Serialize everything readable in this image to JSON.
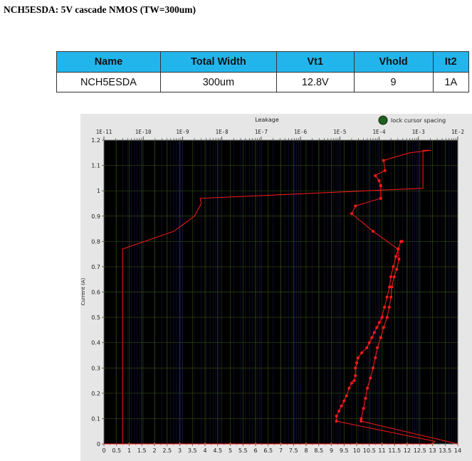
{
  "page": {
    "title": "NCH5ESDA: 5V cascade NMOS (TW=300um)"
  },
  "spec_table": {
    "headers": [
      "Name",
      "Total Width",
      "Vt1",
      "Vhold",
      "It2"
    ],
    "row": [
      "NCH5ESDA",
      "300um",
      "12.8V",
      "9",
      "1A"
    ]
  },
  "colors": {
    "plot_bg": "#000000",
    "frame_bg": "#e6e6e6",
    "curve": "#ff1a1a",
    "grid": "#2f4a10",
    "grid_top": "#1a2a6a",
    "indicator": "#1f5f1f"
  },
  "chart_data": {
    "type": "line",
    "title": "",
    "top_axis": {
      "label": "Leakage",
      "scale": "log",
      "range": [
        1e-11,
        0.01
      ],
      "ticks": [
        "1E-11",
        "1E-10",
        "1E-9",
        "1E-8",
        "1E-7",
        "1E-6",
        "1E-5",
        "1E-4",
        "1E-3",
        "1E-2"
      ]
    },
    "x_axis": {
      "label": "",
      "range": [
        0,
        14
      ],
      "ticks": [
        "0",
        "0.5",
        "1",
        "1.5",
        "2",
        "2.5",
        "3",
        "3.5",
        "4",
        "4.5",
        "5",
        "5.5",
        "6",
        "6.5",
        "7",
        "7.5",
        "8",
        "8.5",
        "9",
        "9.5",
        "10",
        "10.5",
        "11",
        "11.5",
        "12",
        "12.5",
        "13",
        "13.5",
        "14"
      ]
    },
    "y_axis": {
      "label": "Current (A)",
      "range": [
        0,
        1.2
      ],
      "ticks": [
        "0",
        "0.1",
        "0.2",
        "0.3",
        "0.4",
        "0.5",
        "0.6",
        "0.7",
        "0.8",
        "0.9",
        "1",
        "1.1",
        "1.2"
      ]
    },
    "indicator_label": "lock cursor spacing",
    "grid": true,
    "iv_series": {
      "x": [
        0,
        0.5,
        1,
        1.5,
        2,
        2.5,
        3,
        3.5,
        4,
        4.5,
        5,
        5.5,
        6,
        6.5,
        7,
        7.5,
        8,
        8.5,
        9,
        9.5,
        10,
        10.5,
        11,
        11.5,
        11.8,
        12.1,
        12.4,
        12.7,
        13,
        13.1,
        9.2,
        9.2,
        9.3,
        9.4,
        9.5,
        9.6,
        9.7,
        9.8,
        9.9,
        9.95,
        9.95,
        10.0,
        10.05,
        10.2,
        10.4,
        10.5,
        10.6,
        10.7,
        10.8,
        10.9,
        11.0,
        11.1,
        11.2,
        11.3,
        11.35,
        11.45,
        11.55,
        11.65,
        11.75,
        11.8
      ],
      "y": [
        0,
        0,
        0,
        0,
        0,
        0,
        0,
        0,
        0,
        0,
        0,
        0,
        0,
        0,
        0,
        0,
        0,
        0,
        0,
        0,
        0,
        0,
        0,
        0,
        0,
        0,
        0,
        0,
        0,
        0.01,
        0.09,
        0.11,
        0.13,
        0.15,
        0.17,
        0.19,
        0.22,
        0.24,
        0.25,
        0.27,
        0.3,
        0.32,
        0.34,
        0.36,
        0.38,
        0.4,
        0.42,
        0.44,
        0.46,
        0.48,
        0.5,
        0.54,
        0.58,
        0.62,
        0.66,
        0.7,
        0.74,
        0.77,
        0.8,
        0.8
      ]
    },
    "leakage_series": {
      "current": [
        0,
        0.77,
        0.84,
        0.9,
        0.95,
        0.97,
        1.01,
        1.16,
        1.16,
        1.15,
        1.12,
        1.08,
        1.06,
        1.04,
        1.02,
        0.97,
        0.94,
        0.91,
        0.84,
        0.77,
        0.73,
        0.69,
        0.66,
        0.62,
        0.58,
        0.54,
        0.5,
        0.46,
        0.42,
        0.38,
        0.34,
        0.3,
        0.26,
        0.22,
        0.18,
        0.14,
        0.1,
        0.09,
        0
      ],
      "leakage": [
        3e-11,
        3e-11,
        6e-10,
        2e-09,
        3e-09,
        2.8e-09,
        0.0013,
        0.0013,
        0.0021,
        0.0006,
        0.00013,
        0.00014,
        8e-05,
        0.0001,
        0.00011,
        0.00011,
        2.5e-05,
        2e-05,
        7e-05,
        0.0003,
        0.00032,
        0.00028,
        0.00024,
        0.00021,
        0.0002,
        0.00018,
        0.00016,
        0.00013,
        0.00011,
        9e-05,
        8e-05,
        7e-05,
        6e-05,
        5e-05,
        4.5e-05,
        4e-05,
        3.5e-05,
        3.5e-05,
        0.01
      ]
    }
  }
}
